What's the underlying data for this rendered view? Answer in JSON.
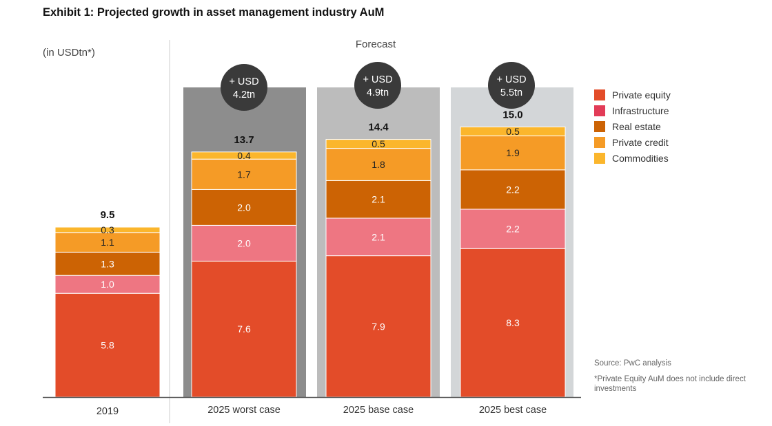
{
  "header": {
    "title": "Exhibit 1: Projected growth in asset management industry AuM",
    "unit_label": "(in USDtn*)",
    "forecast_label": "Forecast"
  },
  "chart_data": {
    "type": "bar",
    "stacked": true,
    "title": "Exhibit 1: Projected growth in asset management industry AuM",
    "ylabel": "(in USDtn*)",
    "ylim": [
      0,
      15.0
    ],
    "categories": [
      "2019",
      "2025 worst case",
      "2025 base case",
      "2025 best case"
    ],
    "totals": [
      "9.5",
      "13.7",
      "14.4",
      "15.0"
    ],
    "growth_labels": [
      null,
      [
        "+ USD",
        "4.2tn"
      ],
      [
        "+ USD",
        "4.9tn"
      ],
      [
        "+ USD",
        "5.5tn"
      ]
    ],
    "series": [
      {
        "name": "Private equity",
        "color": "#e34c29",
        "values": [
          5.8,
          7.6,
          7.9,
          8.3
        ]
      },
      {
        "name": "Infrastructure",
        "color": "#ee7682",
        "values": [
          1.0,
          2.0,
          2.1,
          2.2
        ]
      },
      {
        "name": "Real estate",
        "color": "#cc6304",
        "values": [
          1.3,
          2.0,
          2.1,
          2.2
        ]
      },
      {
        "name": "Private credit",
        "color": "#f59b26",
        "values": [
          1.1,
          1.7,
          1.8,
          1.9
        ]
      },
      {
        "name": "Commodities",
        "color": "#fbb62c",
        "values": [
          0.3,
          0.4,
          0.5,
          0.5
        ]
      }
    ],
    "legend_position": "right",
    "grid": false
  },
  "legend": {
    "items": [
      {
        "label": "Private equity",
        "color": "#e34c29"
      },
      {
        "label": "Infrastructure",
        "color": "#e23b57"
      },
      {
        "label": "Real estate",
        "color": "#cc6304"
      },
      {
        "label": "Private credit",
        "color": "#f59b26"
      },
      {
        "label": "Commodities",
        "color": "#fbb62c"
      }
    ]
  },
  "notes": {
    "source": "Source: PwC analysis",
    "footnote": "*Private Equity AuM does not include direct investments"
  },
  "colors": {
    "panel_worst": "#8d8d8d",
    "panel_base": "#bcbcbc",
    "panel_best": "#d3d6d8",
    "bubble": "#3a3a3a",
    "axis": "#555555"
  }
}
